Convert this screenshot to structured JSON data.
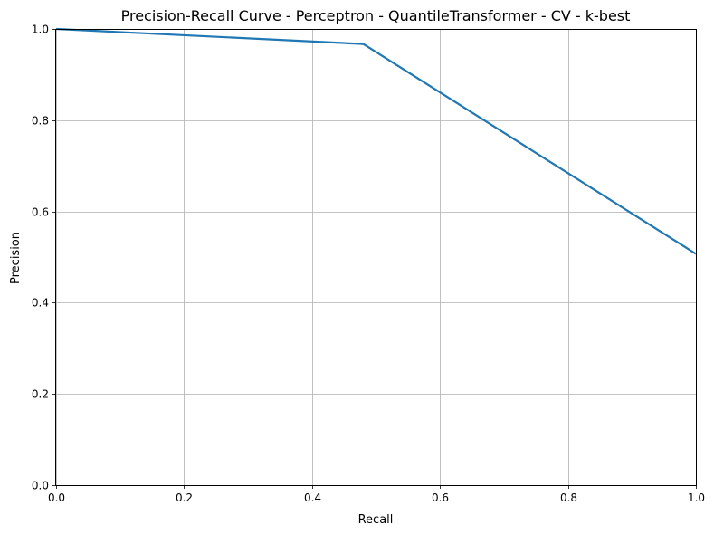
{
  "chart_data": {
    "type": "line",
    "title": "Precision-Recall Curve - Perceptron - QuantileTransformer - CV - k-best",
    "xlabel": "Recall",
    "ylabel": "Precision",
    "xlim": [
      0.0,
      1.0
    ],
    "ylim": [
      0.0,
      1.0
    ],
    "x_ticks": [
      "0.0",
      "0.2",
      "0.4",
      "0.6",
      "0.8",
      "1.0"
    ],
    "y_ticks": [
      "0.0",
      "0.2",
      "0.4",
      "0.6",
      "0.8",
      "1.0"
    ],
    "grid": true,
    "series": [
      {
        "color": "#1f77b4",
        "x": [
          0.0,
          0.48,
          1.0
        ],
        "y": [
          1.0,
          0.967,
          0.507
        ]
      }
    ]
  }
}
